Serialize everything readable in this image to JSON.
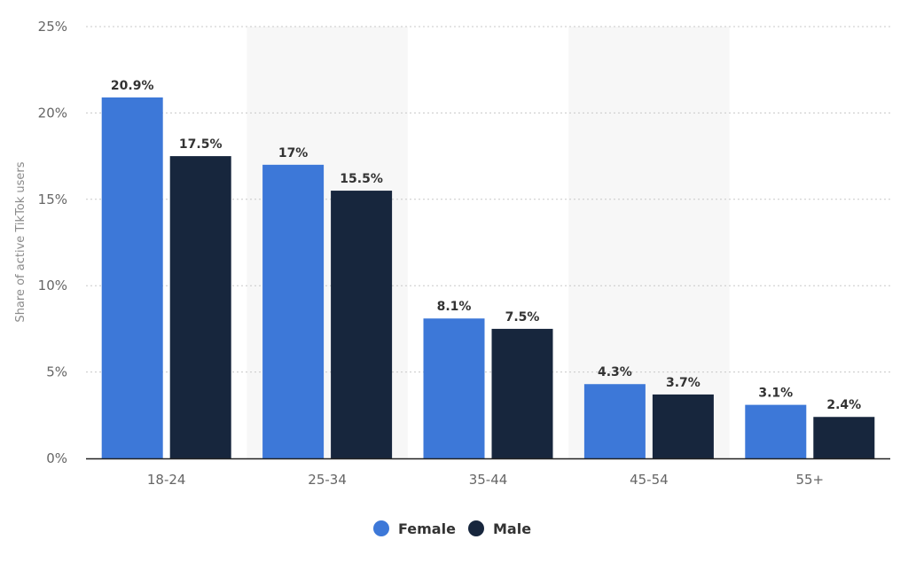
{
  "chart_data": {
    "type": "bar",
    "ylabel": "Share of active TikTok users",
    "categories": [
      "18-24",
      "25-34",
      "35-44",
      "45-54",
      "55+"
    ],
    "series": [
      {
        "name": "Female",
        "color": "#3d78d8",
        "values": [
          20.9,
          17,
          8.1,
          4.3,
          3.1
        ],
        "labels": [
          "20.9%",
          "17%",
          "8.1%",
          "4.3%",
          "3.1%"
        ]
      },
      {
        "name": "Male",
        "color": "#17263d",
        "values": [
          17.5,
          15.5,
          7.5,
          3.7,
          2.4
        ],
        "labels": [
          "17.5%",
          "15.5%",
          "7.5%",
          "3.7%",
          "2.4%"
        ]
      }
    ],
    "ylim": [
      0,
      25
    ],
    "yticks": [
      0,
      5,
      10,
      15,
      20,
      25
    ],
    "ytick_labels": [
      "0%",
      "5%",
      "10%",
      "15%",
      "20%",
      "25%"
    ],
    "grid": true,
    "alternating_band_color": "#f7f7f7",
    "legend_position": "bottom-center"
  }
}
